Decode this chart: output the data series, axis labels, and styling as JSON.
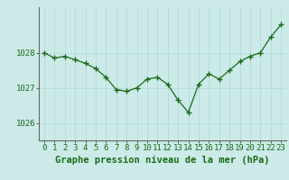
{
  "x": [
    0,
    1,
    2,
    3,
    4,
    5,
    6,
    7,
    8,
    9,
    10,
    11,
    12,
    13,
    14,
    15,
    16,
    17,
    18,
    19,
    20,
    21,
    22,
    23
  ],
  "y": [
    1028.0,
    1027.85,
    1027.9,
    1027.8,
    1027.7,
    1027.55,
    1027.3,
    1026.95,
    1026.9,
    1027.0,
    1027.25,
    1027.3,
    1027.1,
    1026.65,
    1026.3,
    1027.1,
    1027.4,
    1027.25,
    1027.5,
    1027.75,
    1027.9,
    1028.0,
    1028.45,
    1028.8
  ],
  "line_color": "#1a6b1a",
  "marker_color": "#1a6b1a",
  "bg_color": "#cceae8",
  "grid_color": "#b0d8d4",
  "xlabel": "Graphe pression niveau de la mer (hPa)",
  "xlabel_color": "#1a6b1a",
  "yticks": [
    1026,
    1027,
    1028
  ],
  "ylim": [
    1025.5,
    1029.3
  ],
  "xlim": [
    -0.5,
    23.5
  ],
  "tick_color": "#1a6b1a",
  "spine_color": "#888888",
  "xlabel_fontsize": 7.5,
  "tick_fontsize": 6.5
}
